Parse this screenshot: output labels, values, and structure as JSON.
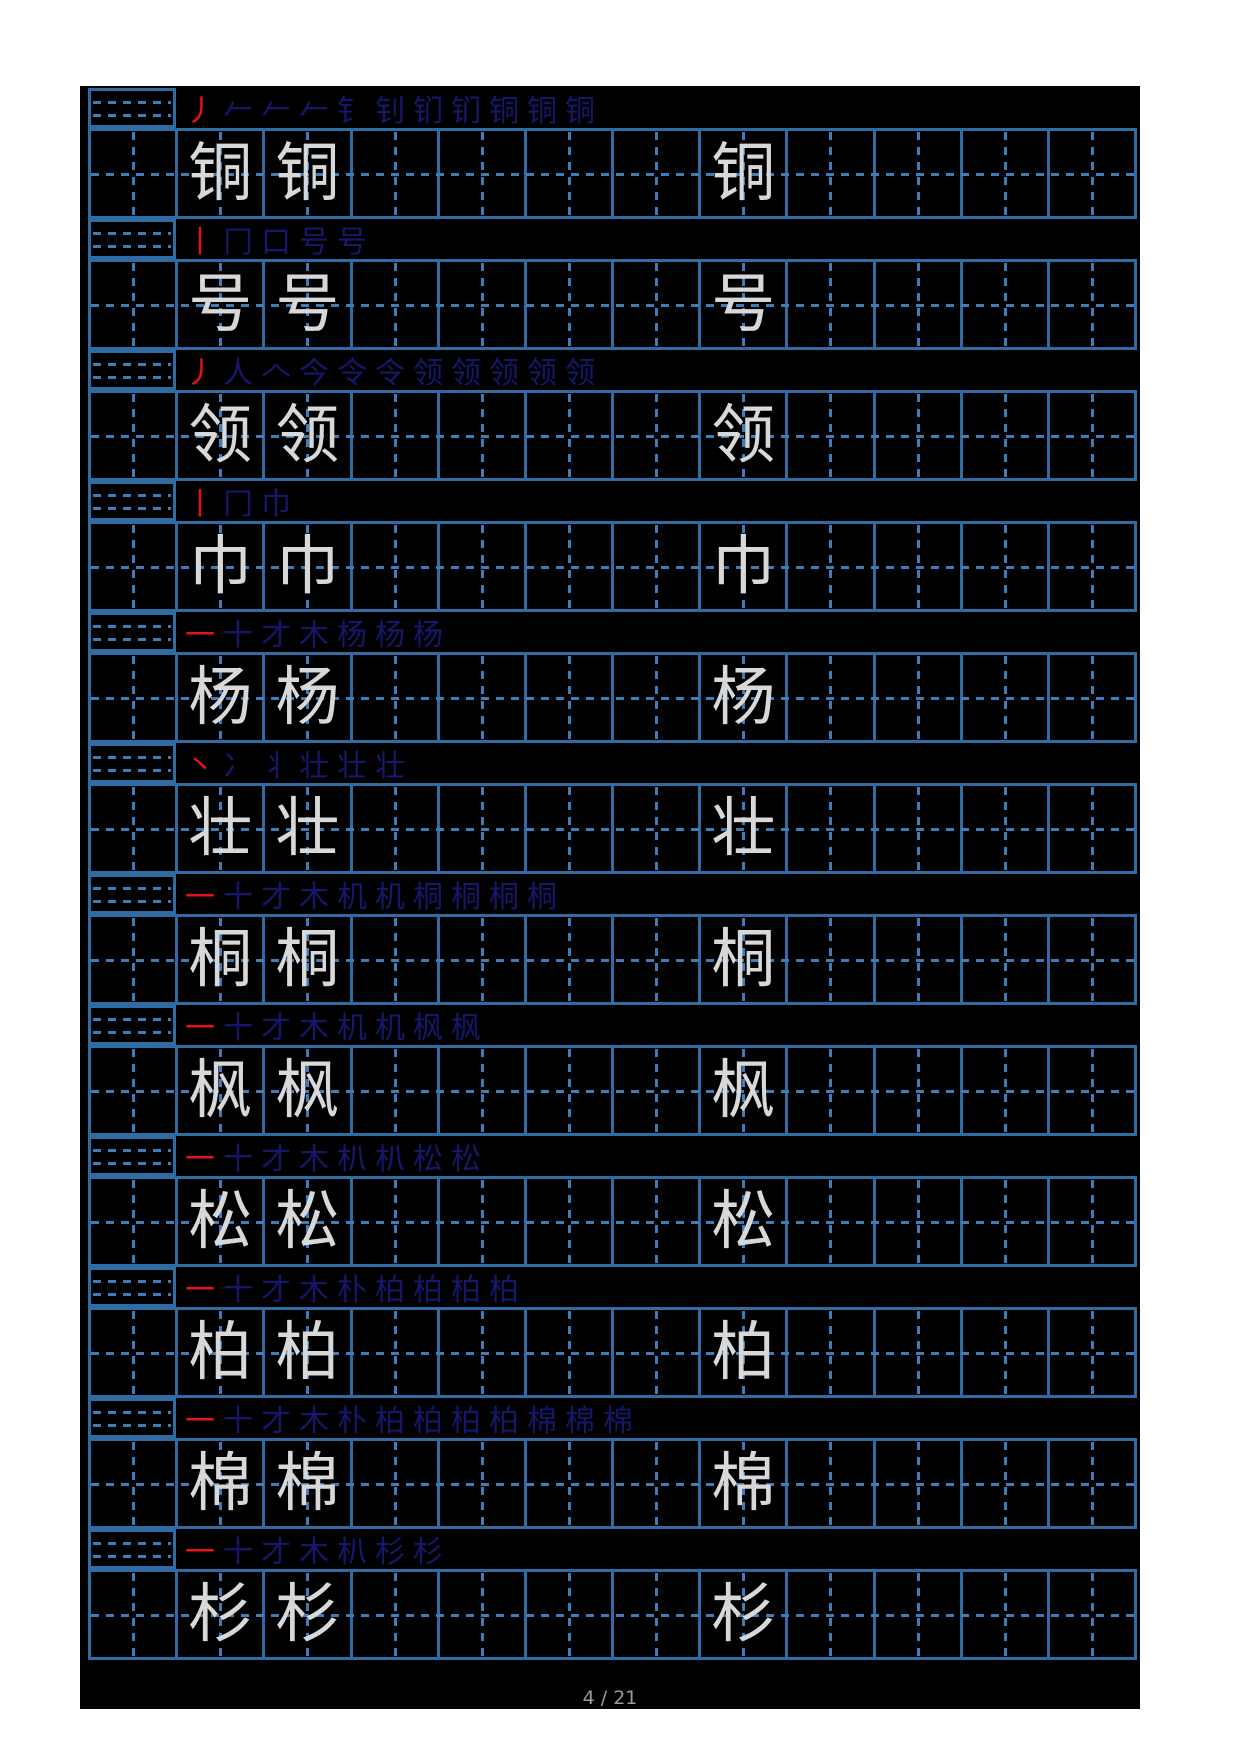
{
  "page": {
    "background_color": "#ffffff",
    "canvas_color": "#000000",
    "page_number": "4 / 21"
  },
  "grid": {
    "columns_per_row": 12,
    "char_columns": [
      2,
      3,
      8
    ],
    "solid_line_color": "#2e6ca3",
    "dashed_line_color": "#3f7db8",
    "model_char_color": "#d8d8d8",
    "stroke_done_color": "#16166b",
    "stroke_new_color": "#e8101a"
  },
  "rows": [
    {
      "char": "铜",
      "stroke_count": 11,
      "steps": [
        "丿",
        "𠂉",
        "𠂉",
        "𠂉",
        "钅",
        "钊",
        "钔",
        "钔",
        "铜",
        "铜",
        "铜"
      ]
    },
    {
      "char": "号",
      "stroke_count": 5,
      "steps": [
        "丨",
        "冂",
        "口",
        "号",
        "号"
      ]
    },
    {
      "char": "领",
      "stroke_count": 11,
      "steps": [
        "丿",
        "人",
        "𠆢",
        "今",
        "令",
        "令",
        "领",
        "领",
        "领",
        "领",
        "领"
      ]
    },
    {
      "char": "巾",
      "stroke_count": 3,
      "steps": [
        "丨",
        "冂",
        "巾"
      ]
    },
    {
      "char": "杨",
      "stroke_count": 7,
      "steps": [
        "一",
        "十",
        "才",
        "木",
        "杨",
        "杨",
        "杨"
      ]
    },
    {
      "char": "壮",
      "stroke_count": 6,
      "steps": [
        "丶",
        "冫",
        "丬",
        "壮",
        "壮",
        "壮"
      ]
    },
    {
      "char": "桐",
      "stroke_count": 10,
      "steps": [
        "一",
        "十",
        "才",
        "木",
        "机",
        "机",
        "桐",
        "桐",
        "桐",
        "桐"
      ]
    },
    {
      "char": "枫",
      "stroke_count": 8,
      "steps": [
        "一",
        "十",
        "才",
        "木",
        "机",
        "机",
        "枫",
        "枫"
      ]
    },
    {
      "char": "松",
      "stroke_count": 8,
      "steps": [
        "一",
        "十",
        "才",
        "木",
        "朳",
        "朳",
        "松",
        "松"
      ]
    },
    {
      "char": "柏",
      "stroke_count": 9,
      "steps": [
        "一",
        "十",
        "才",
        "木",
        "朴",
        "柏",
        "柏",
        "柏",
        "柏"
      ]
    },
    {
      "char": "棉",
      "stroke_count": 12,
      "steps": [
        "一",
        "十",
        "才",
        "木",
        "朴",
        "柏",
        "柏",
        "柏",
        "柏",
        "棉",
        "棉",
        "棉"
      ]
    },
    {
      "char": "杉",
      "stroke_count": 7,
      "steps": [
        "一",
        "十",
        "才",
        "木",
        "朳",
        "杉",
        "杉"
      ]
    }
  ]
}
